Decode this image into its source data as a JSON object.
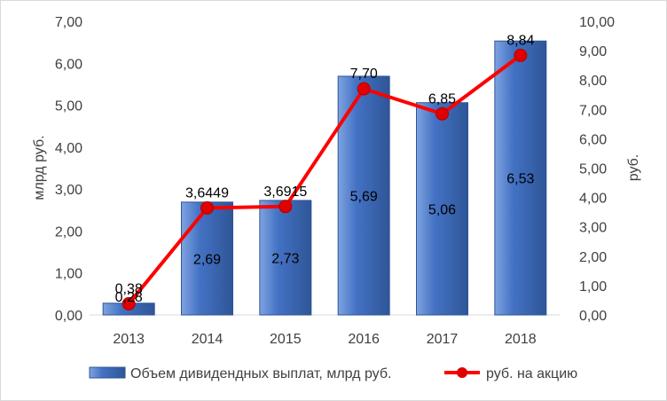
{
  "colors": {
    "bar_fill": "#4472c4",
    "bar_light": "#7ea3e0",
    "bar_dark": "#2e5597",
    "line": "#ff0000",
    "marker": "#e00000",
    "grid": "#d9d9d9"
  },
  "chart_data": {
    "type": "bar",
    "categories": [
      "2013",
      "2014",
      "2015",
      "2016",
      "2017",
      "2018"
    ],
    "ylabel": "млрд руб.",
    "y2label": "руб.",
    "ylim": [
      0,
      7
    ],
    "y2lim": [
      0,
      10
    ],
    "yticks": [
      "0,00",
      "1,00",
      "2,00",
      "3,00",
      "4,00",
      "5,00",
      "6,00",
      "7,00"
    ],
    "y2ticks": [
      "0,00",
      "1,00",
      "2,00",
      "3,00",
      "4,00",
      "5,00",
      "6,00",
      "7,00",
      "8,00",
      "9,00",
      "10,00"
    ],
    "grid": false,
    "legend_position": "bottom",
    "series": [
      {
        "name": "Объем дивидендных выплат, млрд руб.",
        "kind": "bar",
        "axis": "left",
        "values": [
          0.28,
          2.69,
          2.73,
          5.69,
          5.06,
          6.53
        ],
        "labels": [
          "0,28",
          "2,69",
          "2,73",
          "5,69",
          "5,06",
          "6,53"
        ]
      },
      {
        "name": "руб. на акцию",
        "kind": "line",
        "axis": "right",
        "values": [
          0.38,
          3.6449,
          3.6915,
          7.7,
          6.85,
          8.84
        ],
        "labels": [
          "0,38",
          "3,6449",
          "3,6915",
          "7,70",
          "6,85",
          "8,84"
        ]
      }
    ]
  }
}
